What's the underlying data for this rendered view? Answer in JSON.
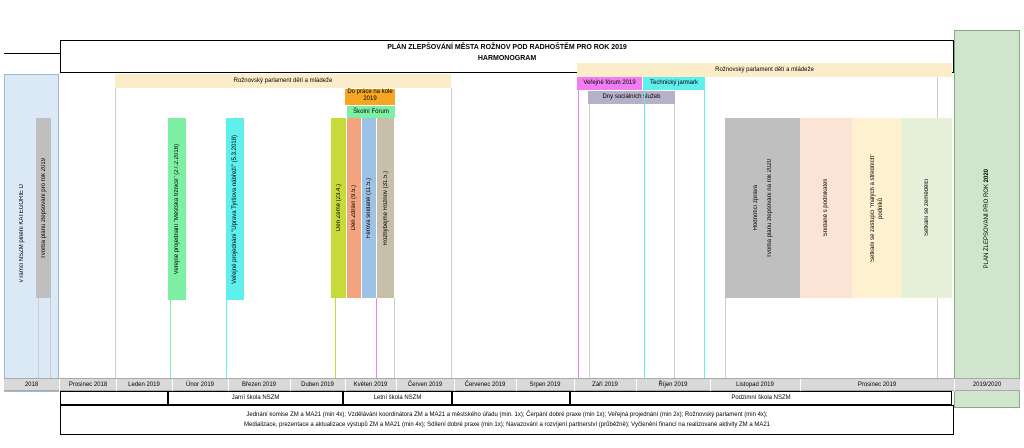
{
  "header": {
    "title": "PLÁN ZLEPŠOVÁNÍ MĚSTA ROŽNOV POD RADHOŠTĚM PRO ROK 2019",
    "subtitle": "HARMONOGRAM"
  },
  "left_panel": {
    "label_1": "v rámci NSZM plnění KATEGORIE D",
    "label_2": "Tvorba plánu zlepšování pro rok 2019"
  },
  "right_panel": {
    "label_prefix": "PLÁN ZLEPŠOVÁNÍ PRO ROK ",
    "label_year": "2020"
  },
  "bands": {
    "parliament_left": "Rožnovský parlament dětí a mládeže",
    "parliament_right": "Rožnovský parlament dětí a mládeže",
    "do_prace": "Do práce na kole 2019",
    "skolni_forum": "Školní Fórum",
    "verejne_forum": "Veřejné fórum 2019",
    "technicky_jarmark": "Technický jarmark",
    "dny_socialnich": "Dny sociálních služeb"
  },
  "vertical_events": {
    "mestska_troznice": "Veřejné projednání \"Městská tržnice\" (27.2.2018)",
    "uprava_nabrezi": "Veřejné projednání \"Úprava Tyršova nábřeží\" (5.3.2018)",
    "den_zeme": "Den Země (23.4.)",
    "den_zdravi": "Den Zdraví (9.5.)",
    "ferova_snidane": "Férová snídaně (11.5.)",
    "rozhybejme": "Rozhýbejme Rožnov (31.5.)",
    "hodnotici_zprava": "Hodnotící zpráva",
    "tvorba_2020": "Tvorba plánu zlepšování na rok 2020",
    "snidane_podnikatele": "Snídaně s podnikateli",
    "setkani_skoly": "Setkání se zástupci \"malých a středních\" podniků",
    "setkani_zemedelci": "Setkání se zemědělci"
  },
  "timeline": {
    "months": [
      "2018",
      "Prosinec 2018",
      "Leden 2019",
      "Únor 2019",
      "Březen 2019",
      "Duben 2019",
      "Květen 2019",
      "Červen 2019",
      "Červenec 2019",
      "Srpen 2019",
      "Září 2019",
      "Říjen 2019",
      "Listopad 2019",
      "Prosinec 2019",
      "2019/2020"
    ],
    "jarni_skola": "Jarní škola NSZM",
    "letni_skola": "Letní škola NSZM",
    "podzimni_skola": "Podzimní škola NSZM"
  },
  "footer": {
    "line_1": "Jednání komise ZM a MA21 (min 4x); Vzdělávání koordinátora ZM a MA21 a městského úřadu (min. 1x); Čerpání dobré praxe (min 1x); Veřejná projednání (min 2x); Rožnovský parlament (min 4x);",
    "line_2": "Medializace, prezentace a aktualizace výstupů ZM a MA21 (min 4x); Sdílení dobré praxe (min 1x); Navazování a rozvíjení partnerství (průběžně); Vyčlenění financí na realizované aktivity ZM a MA21"
  },
  "colors": {
    "left_panel": "#dbe9f6",
    "right_panel": "#cfe6cc",
    "band": "#fbedc9",
    "green_bar": "#7ef0a4",
    "cyan_bar": "#5ff0ee",
    "olive_bar": "#c6db3a",
    "orange_bar": "#f4a37f",
    "blue_bar": "#9cc2e6",
    "khaki_bar": "#c8bfab",
    "gray_bar": "#bfbfbf",
    "peach_bar": "#fbe3d6",
    "yellow_bar": "#fdf1cf",
    "lightgreen_bar": "#e4f1d8",
    "magenta": "#f07ef0",
    "orange_top": "#f5a623"
  }
}
